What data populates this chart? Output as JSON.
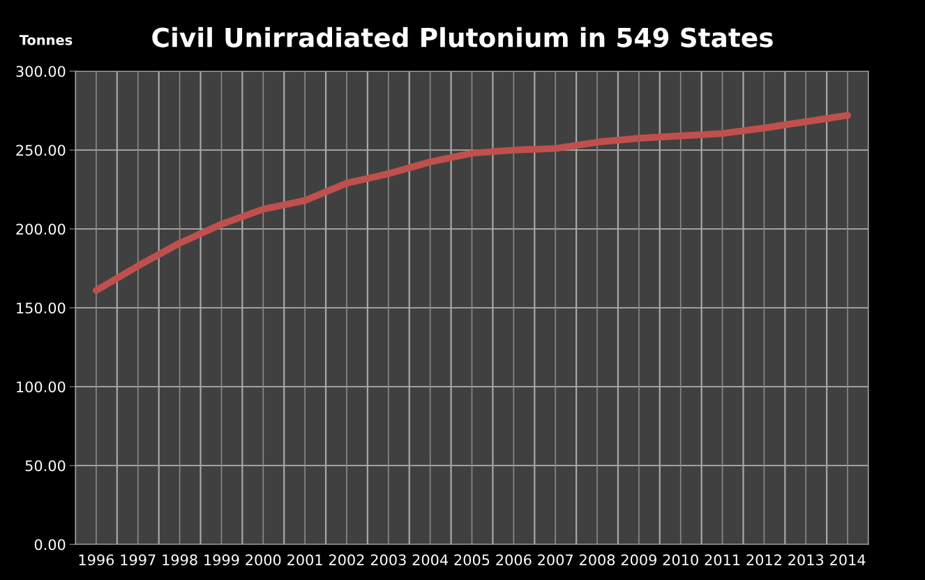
{
  "chart_data": {
    "type": "line",
    "title": "Civil Unirradiated Plutonium in 549 States",
    "ylabel": "Tonnes",
    "categories": [
      "1996",
      "1997",
      "1998",
      "1999",
      "2000",
      "2001",
      "2002",
      "2003",
      "2004",
      "2005",
      "2006",
      "2007",
      "2008",
      "2009",
      "2010",
      "2011",
      "2012",
      "2013",
      "2014"
    ],
    "series": [
      {
        "color": "#c0504d",
        "values": [
          161,
          176.5,
          191,
          203,
          212.5,
          218,
          229,
          235,
          242.5,
          248,
          250,
          251,
          255,
          257.5,
          259,
          260.5,
          264,
          268,
          272
        ]
      }
    ],
    "ylim": [
      0,
      300
    ],
    "yticks": [
      {
        "value": 0,
        "label": "0.00"
      },
      {
        "value": 50,
        "label": "50.00"
      },
      {
        "value": 100,
        "label": "100.00"
      },
      {
        "value": 150,
        "label": "150.00"
      },
      {
        "value": 200,
        "label": "200.00"
      },
      {
        "value": 250,
        "label": "250.00"
      },
      {
        "value": 300,
        "label": "300.00"
      }
    ],
    "grid": true,
    "marker": "none",
    "line_style": "solid"
  }
}
